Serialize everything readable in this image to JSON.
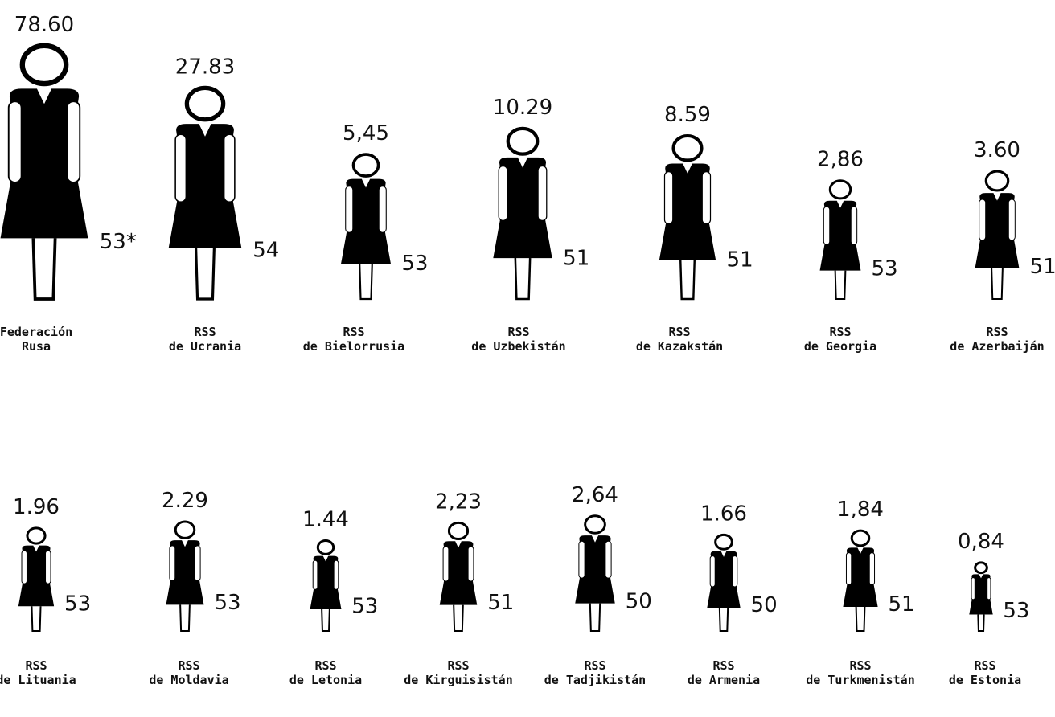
{
  "chart_data": {
    "type": "pictograph",
    "categories": [
      [
        "Federación",
        "Rusa"
      ],
      [
        "RSS",
        "de Ucrania"
      ],
      [
        "RSS",
        "de Bielorrusia"
      ],
      [
        "RSS",
        "de Uzbekistán"
      ],
      [
        "RSS",
        "de Kazakstán"
      ],
      [
        "RSS",
        "de Georgia"
      ],
      [
        "RSS",
        "de Azerbaiján"
      ],
      [
        "RSS",
        "de Lituania"
      ],
      [
        "RSS",
        "de Moldavia"
      ],
      [
        "RSS",
        "de Letonia"
      ],
      [
        "RSS",
        "de Kirguisistán"
      ],
      [
        "RSS",
        "de Tadjikistán"
      ],
      [
        "RSS",
        "de Armenia"
      ],
      [
        "RSS",
        "de Turkmenistán"
      ],
      [
        "RSS",
        "de Estonia"
      ]
    ],
    "values": [
      78.6,
      27.83,
      5.45,
      10.29,
      8.59,
      2.86,
      3.6,
      1.96,
      2.29,
      1.44,
      2.23,
      2.64,
      1.66,
      1.84,
      0.84
    ],
    "value_labels": [
      "78.60",
      "27.83",
      "5,45",
      "10.29",
      "8.59",
      "2,86",
      "3.60",
      "1.96",
      "2.29",
      "1.44",
      "2,23",
      "2,64",
      "1.66",
      "1,84",
      "0,84"
    ],
    "shares": [
      53,
      54,
      53,
      51,
      51,
      53,
      51,
      53,
      53,
      53,
      51,
      50,
      50,
      51,
      53
    ],
    "share_labels": [
      "53*",
      "54",
      "53",
      "51",
      "51",
      "53",
      "51",
      "53",
      "53",
      "53",
      "51",
      "50",
      "50",
      "51",
      "53"
    ],
    "color": "#000000"
  }
}
